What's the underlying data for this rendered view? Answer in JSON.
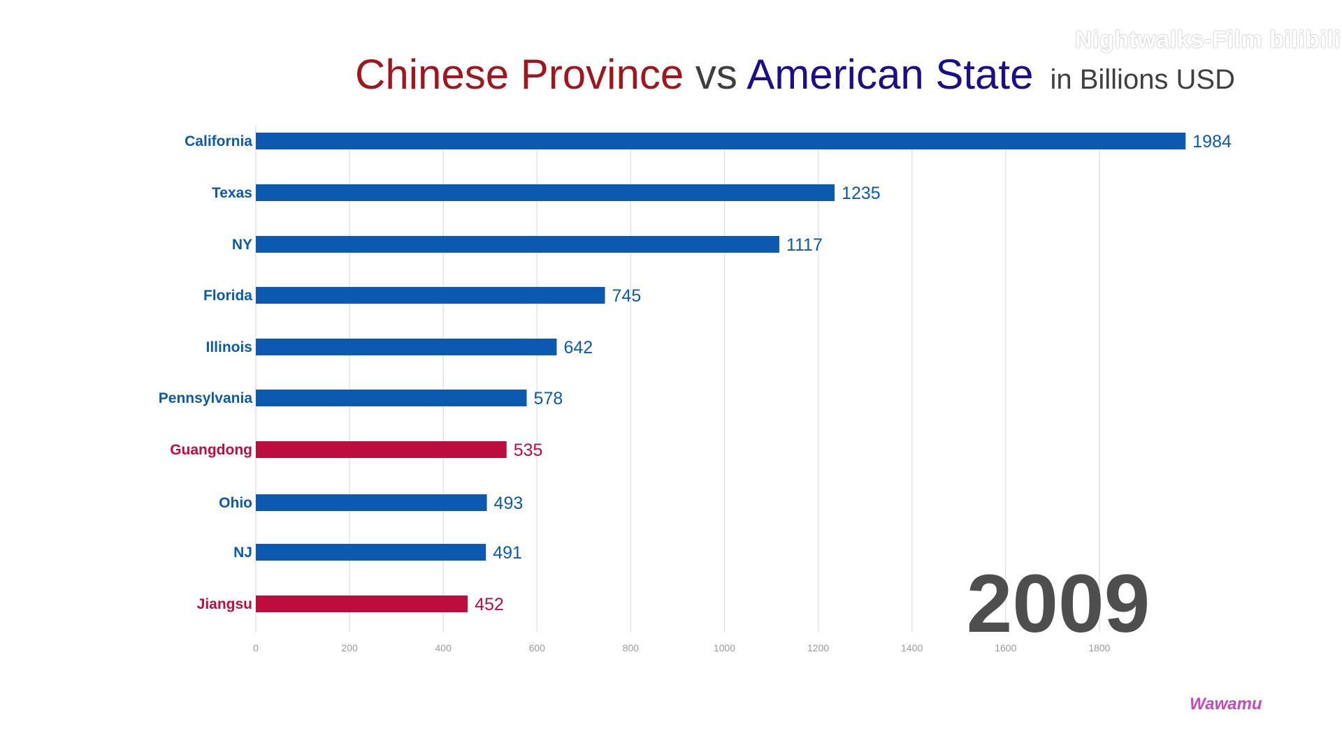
{
  "title": {
    "part1": "Chinese Province",
    "vs": " vs ",
    "part2": "American State",
    "unit": "in Billions USD"
  },
  "colors": {
    "china": "#bc0d3e",
    "usa": "#0b5ab0",
    "title_china": "#a3151d",
    "title_usa": "#1a0e8c",
    "title_vs": "#3f3f3f",
    "grid": "#e2e2e2"
  },
  "watermark": "Nightwalks-Film bilibili",
  "credit": "Wawamu",
  "chart_data": {
    "type": "bar",
    "orientation": "horizontal",
    "year": "2009",
    "categories": [
      "California",
      "Texas",
      "NY",
      "Florida",
      "Illinois",
      "Pennsylvania",
      "Guangdong",
      "Ohio",
      "NJ",
      "Jiangsu"
    ],
    "values": [
      1984,
      1235,
      1117,
      745,
      642,
      578,
      535,
      493,
      491,
      452
    ],
    "groups": [
      "usa",
      "usa",
      "usa",
      "usa",
      "usa",
      "usa",
      "china",
      "usa",
      "usa",
      "china"
    ],
    "xticks": [
      0,
      200,
      400,
      600,
      800,
      1000,
      1200,
      1400,
      1600,
      1800
    ],
    "xlim": [
      0,
      2000
    ],
    "grid": true
  }
}
